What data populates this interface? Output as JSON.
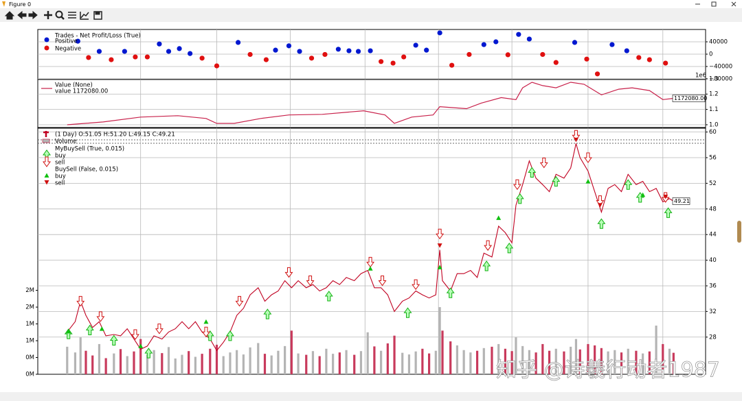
{
  "window_title": "Figure 0",
  "watermark": "知乎 @诗羲行动者1987",
  "chart_data": [
    {
      "type": "scatter",
      "title": "Trades - Net Profit/Loss (True)",
      "xlim": [
        0,
        500
      ],
      "xticks": [
        77,
        134,
        189,
        245,
        300,
        355,
        412,
        468
      ],
      "ylim": [
        -80000,
        80000
      ],
      "yticks": [
        40000,
        0,
        {
          "value": -40000,
          "label": "−40000"
        },
        {
          "value": -80000,
          "label": "−80000"
        }
      ],
      "grid": true,
      "series": [
        {
          "name": "Positive",
          "color": "#0018d0",
          "x": [
            30,
            46,
            65,
            91,
            98,
            106,
            114,
            150,
            178,
            188,
            196,
            225,
            233,
            240,
            249,
            283,
            291,
            301,
            334,
            343,
            360,
            368,
            402,
            430,
            441
          ],
          "values": [
            42000,
            9000,
            9000,
            33000,
            9000,
            18000,
            2000,
            38000,
            13000,
            27000,
            9000,
            16000,
            11000,
            9000,
            11000,
            29000,
            13000,
            69000,
            31000,
            40000,
            64000,
            49000,
            38000,
            31000,
            11000
          ]
        },
        {
          "name": "Negative",
          "color": "#e01010",
          "x": [
            38,
            55,
            73,
            82,
            123,
            134,
            159,
            171,
            205,
            215,
            257,
            266,
            274,
            310,
            323,
            352,
            378,
            388,
            411,
            419,
            450,
            458,
            470
          ],
          "values": [
            -11000,
            -18000,
            -9000,
            -9000,
            -13000,
            -38000,
            -1000,
            -18000,
            -13000,
            -1000,
            -24000,
            -29000,
            -9000,
            -36000,
            -1000,
            -2000,
            -1000,
            -27000,
            -16000,
            -64000,
            -11000,
            -18000,
            -29000
          ]
        }
      ]
    },
    {
      "type": "line",
      "title": "Value (None)",
      "xlim": [
        0,
        500
      ],
      "xticks": [
        77,
        134,
        189,
        245,
        300,
        355,
        412,
        468
      ],
      "ylim": [
        982000,
        1295000
      ],
      "yticks": [
        {
          "value": 1000000,
          "label": "1.0"
        },
        {
          "value": 1100000,
          "label": "1.1"
        },
        {
          "value": 1200000,
          "label": "1.2"
        },
        {
          "value": 1300000,
          "label": "1.3"
        }
      ],
      "y_offset_label": "1e6",
      "grid": true,
      "series": [
        {
          "name": "value 1172080.00",
          "color": "#c8204a",
          "x": [
            22,
            49,
            77,
            105,
            126,
            134,
            147,
            167,
            188,
            213,
            244,
            260,
            267,
            280,
            296,
            301,
            321,
            332,
            347,
            358,
            363,
            370,
            378,
            388,
            399,
            409,
            422,
            435,
            445,
            458,
            468,
            476
          ],
          "values": [
            1000000,
            1018000,
            1050000,
            1059000,
            1041000,
            1009000,
            1009000,
            1041000,
            1064000,
            1068000,
            1091000,
            1064000,
            1009000,
            1050000,
            1064000,
            1118000,
            1105000,
            1141000,
            1177000,
            1164000,
            1241000,
            1277000,
            1255000,
            1241000,
            1277000,
            1264000,
            1195000,
            1232000,
            1241000,
            1223000,
            1164000,
            1172080
          ],
          "value_labels": [
            null,
            null,
            null,
            null,
            null,
            null,
            null,
            null,
            null,
            null,
            null,
            null,
            null,
            null,
            null,
            null,
            null,
            null,
            null,
            null,
            null,
            null,
            null,
            null,
            null,
            null,
            null,
            null,
            null,
            null,
            null,
            "1172080.00"
          ]
        }
      ]
    },
    {
      "type": "price-volume",
      "xlim": [
        0,
        500
      ],
      "xticks": [
        77,
        134,
        189,
        245,
        300,
        355,
        412,
        468
      ],
      "ylim": [
        22.2,
        60.6
      ],
      "yticks": [
        28,
        32,
        36,
        40,
        44,
        48,
        52,
        56,
        60
      ],
      "y2lim": [
        0,
        7330000
      ],
      "y2ticks": [
        {
          "value": 0,
          "label": "0M"
        },
        {
          "value": 500000,
          "label": "0M"
        },
        {
          "value": 1000000,
          "label": "1M"
        },
        {
          "value": 1500000,
          "label": "1M"
        },
        {
          "value": 2000000,
          "label": "2M"
        },
        {
          "value": 2500000,
          "label": "2M"
        }
      ],
      "grid": true,
      "series": [
        {
          "name": "(1 Day) O:51.05 H:51.20 L:49.15 C:49.21",
          "color": "#c00020",
          "x": [
            22,
            28,
            32,
            36,
            41,
            46,
            51,
            57,
            62,
            67,
            72,
            77,
            82,
            87,
            93,
            98,
            103,
            108,
            113,
            118,
            123,
            129,
            134,
            139,
            144,
            149,
            154,
            159,
            165,
            170,
            175,
            180,
            185,
            190,
            195,
            201,
            206,
            211,
            216,
            221,
            226,
            231,
            237,
            242,
            247,
            252,
            257,
            262,
            267,
            273,
            278,
            283,
            288,
            293,
            298,
            301,
            303,
            309,
            314,
            319,
            324,
            329,
            334,
            340,
            345,
            350,
            355,
            358,
            363,
            368,
            373,
            378,
            383,
            388,
            394,
            399,
            403,
            406,
            412,
            417,
            422,
            427,
            432,
            437,
            442,
            448,
            453,
            458,
            463,
            468,
            473,
            476
          ],
          "values": [
            28.8,
            30.4,
            33.6,
            31.4,
            29.5,
            30.4,
            28.2,
            28.4,
            28.2,
            29.3,
            27.7,
            26.1,
            26.6,
            28.2,
            27.7,
            28.8,
            29.3,
            30.4,
            29.3,
            30.4,
            28.8,
            27.7,
            25.9,
            27.2,
            28.8,
            31.4,
            32.5,
            34.6,
            35.7,
            33.6,
            34.6,
            35.2,
            36.8,
            35.7,
            36.8,
            35.7,
            36.2,
            35.2,
            35.7,
            36.8,
            36.2,
            37.3,
            36.8,
            37.9,
            38.4,
            35.7,
            35.7,
            34.6,
            32.0,
            33.6,
            34.1,
            35.2,
            34.6,
            34.1,
            34.6,
            41.6,
            36.8,
            35.2,
            37.9,
            37.9,
            38.4,
            37.3,
            41.1,
            40.5,
            45.3,
            44.3,
            42.7,
            48.6,
            51.8,
            55.5,
            52.8,
            51.8,
            50.7,
            53.4,
            52.8,
            54.4,
            58.2,
            56.0,
            53.9,
            50.7,
            47.5,
            51.2,
            51.8,
            50.7,
            53.4,
            51.8,
            52.3,
            50.7,
            51.2,
            49.1,
            49.6,
            49.21
          ],
          "value_labels": [
            null,
            null,
            null,
            null,
            null,
            null,
            null,
            null,
            null,
            null,
            null,
            null,
            null,
            null,
            null,
            null,
            null,
            null,
            null,
            null,
            null,
            null,
            null,
            null,
            null,
            null,
            null,
            null,
            null,
            null,
            null,
            null,
            null,
            null,
            null,
            null,
            null,
            null,
            null,
            null,
            null,
            null,
            null,
            null,
            null,
            null,
            null,
            null,
            null,
            null,
            null,
            null,
            null,
            null,
            null,
            null,
            null,
            null,
            null,
            null,
            null,
            null,
            null,
            null,
            null,
            null,
            null,
            null,
            null,
            null,
            null,
            null,
            null,
            null,
            null,
            null,
            null,
            null,
            null,
            null,
            null,
            null,
            null,
            null,
            null,
            null,
            null,
            null,
            null,
            null,
            null,
            "49.21"
          ]
        },
        {
          "name": "Volume",
          "axis": "y2",
          "color_up": "#b4b4b4",
          "color_down": "#c83a5c",
          "x": [
            22,
            28,
            32,
            36,
            41,
            46,
            51,
            57,
            62,
            67,
            72,
            77,
            82,
            87,
            93,
            98,
            103,
            108,
            113,
            118,
            123,
            129,
            134,
            139,
            144,
            149,
            154,
            159,
            165,
            170,
            175,
            180,
            185,
            190,
            195,
            201,
            206,
            211,
            216,
            221,
            226,
            231,
            237,
            242,
            247,
            252,
            257,
            262,
            267,
            273,
            278,
            283,
            288,
            293,
            298,
            301,
            303,
            309,
            314,
            319,
            324,
            329,
            334,
            340,
            345,
            350,
            355,
            358,
            363,
            368,
            373,
            378,
            383,
            388,
            394,
            399,
            403,
            406,
            412,
            417,
            422,
            427,
            432,
            437,
            442,
            448,
            453,
            458,
            463,
            468,
            473,
            476
          ],
          "values": [
            820000,
            650000,
            1100000,
            700000,
            560000,
            900000,
            480000,
            620000,
            750000,
            540000,
            680000,
            1050000,
            590000,
            720000,
            630000,
            810000,
            470000,
            580000,
            690000,
            520000,
            610000,
            760000,
            880000,
            540000,
            650000,
            720000,
            590000,
            800000,
            930000,
            610000,
            560000,
            700000,
            840000,
            1300000,
            620000,
            580000,
            690000,
            540000,
            760000,
            610000,
            650000,
            720000,
            580000,
            690000,
            1250000,
            830000,
            700000,
            920000,
            1150000,
            640000,
            590000,
            680000,
            760000,
            620000,
            700000,
            2000000,
            1300000,
            980000,
            860000,
            720000,
            650000,
            700000,
            780000,
            820000,
            900000,
            760000,
            690000,
            1100000,
            840000,
            720000,
            650000,
            900000,
            700000,
            760000,
            680000,
            820000,
            1050000,
            740000,
            900000,
            860000,
            780000,
            680000,
            720000,
            650000,
            760000,
            700000,
            620000,
            680000,
            1450000,
            900000,
            760000,
            640000
          ]
        }
      ],
      "signals": [
        {
          "name": "MyBuySell (True, 0.015)",
          "style": "arrow",
          "buy": {
            "name": "buy",
            "color": "#10b010",
            "x": [
              23,
              39,
              57,
              83,
              129,
              144,
              172,
              218,
              277,
              309,
              336,
              353,
              361,
              370,
              388,
              422,
              442,
              451,
              472
            ],
            "values": [
              28.5,
              29.1,
              27.5,
              25.5,
              28.2,
              28.2,
              31.6,
              34.4,
              31.8,
              34.9,
              39.1,
              41.9,
              49.6,
              53.7,
              52.3,
              45.7,
              51.8,
              49.8,
              47.4
            ]
          },
          "sell": {
            "name": "sell",
            "color": "#d01010",
            "x": [
              32,
              47,
              73,
              91,
              126,
              151,
              188,
              204,
              249,
              258,
              283,
              301,
              337,
              359,
              379,
              403,
              412,
              421,
              470
            ],
            "values": [
              33.6,
              31.2,
              28.4,
              29.3,
              28.8,
              33.6,
              38.1,
              36.8,
              39.7,
              36.8,
              36.2,
              44.1,
              42.3,
              51.8,
              55.2,
              59.5,
              56.0,
              49.3,
              49.8
            ]
          }
        },
        {
          "name": "BuySell (False, 0.015)",
          "style": "triangle",
          "buy": {
            "name": "buy",
            "color": "#10c010",
            "x": [
              23,
              48,
              77,
              126,
              249,
              301,
              345,
              412,
              453
            ],
            "values": [
              28.9,
              29.3,
              26.6,
              30.4,
              38.7,
              38.9,
              46.6,
              52.3,
              50.2
            ]
          },
          "sell": {
            "name": "sell",
            "color": "#d01010",
            "x": [
              301,
              403,
              421,
              470
            ],
            "values": [
              42.3,
              58.8,
              48.6,
              49.9
            ]
          }
        }
      ]
    }
  ]
}
